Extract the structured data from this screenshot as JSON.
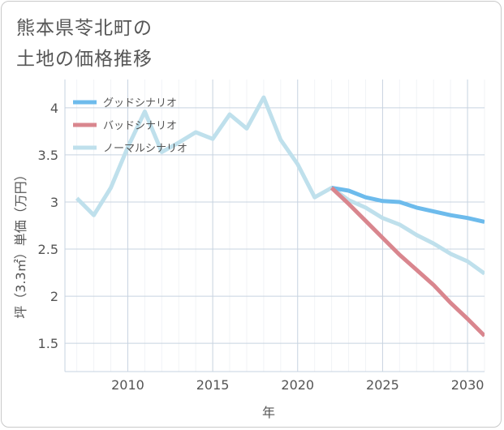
{
  "chart_data": {
    "type": "line",
    "title": "熊本県苓北町の\n土地の価格推移",
    "xlabel": "年",
    "ylabel": "坪（3.3㎡）単価（万円）",
    "xlim": [
      2006.3,
      2031
    ],
    "ylim": [
      1.2,
      4.3
    ],
    "xticks": [
      2010,
      2015,
      2020,
      2025,
      2030
    ],
    "yticks": [
      1.5,
      2,
      2.5,
      3,
      3.5,
      4
    ],
    "xtick_labels": [
      "2010",
      "2015",
      "2020",
      "2025",
      "2030"
    ],
    "ytick_labels": [
      "1.5",
      "2",
      "2.5",
      "3",
      "3.5",
      "4"
    ],
    "grid": true,
    "legend": "top-left",
    "series": [
      {
        "name": "グッドシナリオ",
        "color": "#6dbbec",
        "x": [
          2022,
          2023,
          2024,
          2025,
          2026,
          2027,
          2028,
          2029,
          2030,
          2031
        ],
        "values": [
          3.15,
          3.12,
          3.05,
          3.01,
          3.0,
          2.94,
          2.9,
          2.86,
          2.83,
          2.79
        ]
      },
      {
        "name": "バッドシナリオ",
        "color": "#d9868e",
        "x": [
          2022,
          2023,
          2024,
          2025,
          2026,
          2027,
          2028,
          2029,
          2030,
          2031
        ],
        "values": [
          3.15,
          2.98,
          2.8,
          2.62,
          2.44,
          2.28,
          2.12,
          1.93,
          1.76,
          1.58
        ]
      },
      {
        "name": "ノーマルシナリオ",
        "color": "#bfe0ec",
        "x": [
          2007,
          2008,
          2009,
          2010,
          2011,
          2012,
          2013,
          2014,
          2015,
          2016,
          2017,
          2018,
          2019,
          2020,
          2021,
          2022,
          2023,
          2024,
          2025,
          2026,
          2027,
          2028,
          2029,
          2030,
          2031
        ],
        "values": [
          3.04,
          2.86,
          3.15,
          3.58,
          3.96,
          3.53,
          3.63,
          3.74,
          3.67,
          3.93,
          3.78,
          4.11,
          3.66,
          3.4,
          3.05,
          3.15,
          3.02,
          2.94,
          2.83,
          2.76,
          2.65,
          2.56,
          2.45,
          2.37,
          2.24
        ]
      }
    ]
  }
}
